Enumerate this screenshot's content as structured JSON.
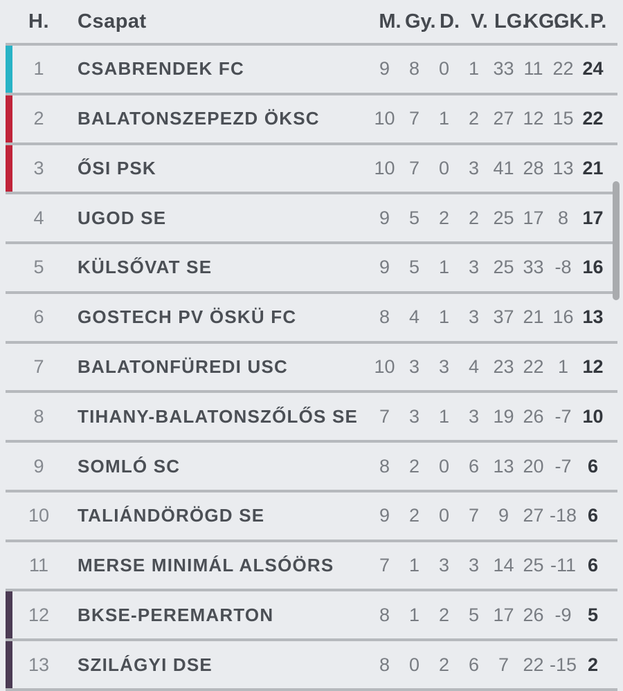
{
  "header": {
    "position_label": "H.",
    "team_label": "Csapat",
    "stats": [
      "M.",
      "Gy.",
      "D.",
      "V.",
      "LG.",
      "KG.",
      "GK.",
      "P."
    ]
  },
  "colors": {
    "promotion_teal": "#29b3c6",
    "contender_red": "#c0243a",
    "relegation_purple": "#4c3b54",
    "divider_gray": "#b6b9bd",
    "background": "#eaecef",
    "points_dark": "#33373d"
  },
  "rows": [
    {
      "position": "1",
      "team": "CSABRENDEK FC",
      "stats": [
        "9",
        "8",
        "0",
        "1",
        "33",
        "11",
        "22"
      ],
      "points": "24",
      "bar_color": "#29b3c6"
    },
    {
      "position": "2",
      "team": "BALATONSZEPEZD ÖKSC",
      "stats": [
        "10",
        "7",
        "1",
        "2",
        "27",
        "12",
        "15"
      ],
      "points": "22",
      "bar_color": "#c0243a"
    },
    {
      "position": "3",
      "team": "ŐSI PSK",
      "stats": [
        "10",
        "7",
        "0",
        "3",
        "41",
        "28",
        "13"
      ],
      "points": "21",
      "bar_color": "#c0243a"
    },
    {
      "position": "4",
      "team": "UGOD SE",
      "stats": [
        "9",
        "5",
        "2",
        "2",
        "25",
        "17",
        "8"
      ],
      "points": "17",
      "bar_color": null
    },
    {
      "position": "5",
      "team": "KÜLSŐVAT SE",
      "stats": [
        "9",
        "5",
        "1",
        "3",
        "25",
        "33",
        "-8"
      ],
      "points": "16",
      "bar_color": null
    },
    {
      "position": "6",
      "team": "GOSTECH PV ÖSKÜ FC",
      "stats": [
        "8",
        "4",
        "1",
        "3",
        "37",
        "21",
        "16"
      ],
      "points": "13",
      "bar_color": null
    },
    {
      "position": "7",
      "team": "BALATONFÜREDI USC",
      "stats": [
        "10",
        "3",
        "3",
        "4",
        "23",
        "22",
        "1"
      ],
      "points": "12",
      "bar_color": null
    },
    {
      "position": "8",
      "team": "TIHANY-BALATONSZŐLŐS SE",
      "stats": [
        "7",
        "3",
        "1",
        "3",
        "19",
        "26",
        "-7"
      ],
      "points": "10",
      "bar_color": null
    },
    {
      "position": "9",
      "team": "SOMLÓ SC",
      "stats": [
        "8",
        "2",
        "0",
        "6",
        "13",
        "20",
        "-7"
      ],
      "points": "6",
      "bar_color": null
    },
    {
      "position": "10",
      "team": "TALIÁNDÖRÖGD SE",
      "stats": [
        "9",
        "2",
        "0",
        "7",
        "9",
        "27",
        "-18"
      ],
      "points": "6",
      "bar_color": null
    },
    {
      "position": "11",
      "team": "MERSE MINIMÁL ALSÓÖRS",
      "stats": [
        "7",
        "1",
        "3",
        "3",
        "14",
        "25",
        "-11"
      ],
      "points": "6",
      "bar_color": null
    },
    {
      "position": "12",
      "team": "BKSE-PEREMARTON",
      "stats": [
        "8",
        "1",
        "2",
        "5",
        "17",
        "26",
        "-9"
      ],
      "points": "5",
      "bar_color": "#4c3b54"
    },
    {
      "position": "13",
      "team": "SZILÁGYI DSE",
      "stats": [
        "8",
        "0",
        "2",
        "6",
        "7",
        "22",
        "-15"
      ],
      "points": "2",
      "bar_color": "#4c3b54"
    }
  ]
}
